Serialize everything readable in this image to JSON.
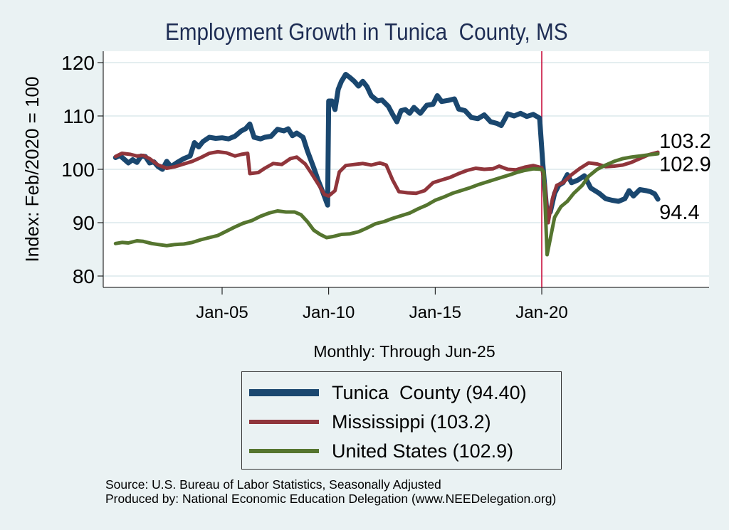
{
  "chart_data": {
    "type": "line",
    "title": "Employment Growth in Tunica  County, MS",
    "xlabel": "Monthly: Through Jun-25",
    "ylabel": "Index: Feb/2020 = 100",
    "xlim": [
      1999.5,
      2028.3
    ],
    "ylim": [
      78.0,
      122.2
    ],
    "x_ticks": [
      {
        "value": 2005,
        "label": "Jan-05"
      },
      {
        "value": 2010,
        "label": "Jan-10"
      },
      {
        "value": 2015,
        "label": "Jan-15"
      },
      {
        "value": 2020,
        "label": "Jan-20"
      }
    ],
    "y_ticks": [
      80,
      90,
      100,
      110,
      120
    ],
    "grid": true,
    "reference_line": {
      "x": 2020.0,
      "color": "#c8103e"
    },
    "legend_position": "bottom",
    "series": [
      {
        "name": "Tunica  County (94.40)",
        "color": "#1a476f",
        "end_label": "94.4",
        "points": [
          [
            2000.0,
            102.2
          ],
          [
            2000.2,
            102.6
          ],
          [
            2000.4,
            101.9
          ],
          [
            2000.6,
            101.2
          ],
          [
            2000.8,
            101.8
          ],
          [
            2001.0,
            101.3
          ],
          [
            2001.2,
            102.5
          ],
          [
            2001.4,
            102.4
          ],
          [
            2001.6,
            101.2
          ],
          [
            2001.8,
            101.4
          ],
          [
            2002.0,
            100.5
          ],
          [
            2002.2,
            100.0
          ],
          [
            2002.4,
            101.5
          ],
          [
            2002.6,
            100.5
          ],
          [
            2002.9,
            101.3
          ],
          [
            2003.2,
            102.0
          ],
          [
            2003.5,
            102.5
          ],
          [
            2003.7,
            105.0
          ],
          [
            2003.9,
            104.2
          ],
          [
            2004.1,
            105.2
          ],
          [
            2004.4,
            106.0
          ],
          [
            2004.7,
            105.8
          ],
          [
            2005.0,
            105.9
          ],
          [
            2005.3,
            105.7
          ],
          [
            2005.6,
            106.2
          ],
          [
            2005.9,
            107.2
          ],
          [
            2006.1,
            107.6
          ],
          [
            2006.3,
            108.5
          ],
          [
            2006.5,
            106.0
          ],
          [
            2006.8,
            105.7
          ],
          [
            2007.0,
            106.0
          ],
          [
            2007.3,
            106.2
          ],
          [
            2007.6,
            107.5
          ],
          [
            2007.9,
            107.2
          ],
          [
            2008.1,
            107.6
          ],
          [
            2008.3,
            106.3
          ],
          [
            2008.5,
            106.8
          ],
          [
            2008.8,
            106.0
          ],
          [
            2009.0,
            103.5
          ],
          [
            2009.3,
            100.3
          ],
          [
            2009.5,
            98.0
          ],
          [
            2009.7,
            96.0
          ],
          [
            2009.95,
            93.3
          ],
          [
            2010.0,
            112.8
          ],
          [
            2010.15,
            112.8
          ],
          [
            2010.3,
            111.2
          ],
          [
            2010.45,
            115.0
          ],
          [
            2010.6,
            116.5
          ],
          [
            2010.8,
            117.8
          ],
          [
            2011.0,
            117.2
          ],
          [
            2011.2,
            116.5
          ],
          [
            2011.4,
            115.6
          ],
          [
            2011.6,
            116.5
          ],
          [
            2011.8,
            115.5
          ],
          [
            2012.0,
            113.8
          ],
          [
            2012.3,
            112.8
          ],
          [
            2012.5,
            113.0
          ],
          [
            2012.8,
            111.8
          ],
          [
            2013.0,
            110.3
          ],
          [
            2013.2,
            108.9
          ],
          [
            2013.4,
            111.0
          ],
          [
            2013.6,
            111.2
          ],
          [
            2013.8,
            110.5
          ],
          [
            2014.0,
            111.6
          ],
          [
            2014.3,
            110.5
          ],
          [
            2014.6,
            112.0
          ],
          [
            2014.9,
            112.2
          ],
          [
            2015.1,
            113.8
          ],
          [
            2015.3,
            112.7
          ],
          [
            2015.6,
            112.9
          ],
          [
            2015.9,
            113.2
          ],
          [
            2016.1,
            111.3
          ],
          [
            2016.4,
            111.0
          ],
          [
            2016.7,
            109.7
          ],
          [
            2017.0,
            109.5
          ],
          [
            2017.3,
            110.2
          ],
          [
            2017.6,
            108.9
          ],
          [
            2017.9,
            108.6
          ],
          [
            2018.1,
            108.2
          ],
          [
            2018.4,
            110.4
          ],
          [
            2018.7,
            110.0
          ],
          [
            2019.0,
            110.5
          ],
          [
            2019.3,
            109.9
          ],
          [
            2019.6,
            110.3
          ],
          [
            2019.9,
            109.6
          ],
          [
            2020.05,
            101.0
          ],
          [
            2020.25,
            91.5
          ],
          [
            2020.4,
            92.0
          ],
          [
            2020.6,
            95.5
          ],
          [
            2020.8,
            97.0
          ],
          [
            2021.0,
            97.5
          ],
          [
            2021.2,
            99.0
          ],
          [
            2021.4,
            97.5
          ],
          [
            2021.7,
            98.0
          ],
          [
            2022.0,
            98.8
          ],
          [
            2022.3,
            96.5
          ],
          [
            2022.7,
            95.5
          ],
          [
            2023.0,
            94.5
          ],
          [
            2023.3,
            94.2
          ],
          [
            2023.6,
            94.0
          ],
          [
            2023.9,
            94.5
          ],
          [
            2024.1,
            96.0
          ],
          [
            2024.3,
            95.0
          ],
          [
            2024.6,
            96.2
          ],
          [
            2024.9,
            96.0
          ],
          [
            2025.1,
            95.8
          ],
          [
            2025.3,
            95.4
          ],
          [
            2025.45,
            94.4
          ]
        ]
      },
      {
        "name": "Mississippi (103.2)",
        "color": "#90353b",
        "end_label": "103.2",
        "points": [
          [
            2000.0,
            102.4
          ],
          [
            2000.3,
            103.0
          ],
          [
            2000.7,
            102.8
          ],
          [
            2001.0,
            102.5
          ],
          [
            2001.3,
            102.6
          ],
          [
            2001.6,
            102.0
          ],
          [
            2002.0,
            100.8
          ],
          [
            2002.4,
            100.2
          ],
          [
            2002.8,
            100.5
          ],
          [
            2003.2,
            101.0
          ],
          [
            2003.6,
            101.5
          ],
          [
            2004.0,
            102.2
          ],
          [
            2004.4,
            103.0
          ],
          [
            2004.8,
            103.3
          ],
          [
            2005.2,
            103.1
          ],
          [
            2005.6,
            102.5
          ],
          [
            2005.9,
            102.8
          ],
          [
            2006.2,
            103.0
          ],
          [
            2006.3,
            99.2
          ],
          [
            2006.7,
            99.4
          ],
          [
            2007.0,
            100.2
          ],
          [
            2007.4,
            101.1
          ],
          [
            2007.8,
            100.9
          ],
          [
            2008.2,
            102.0
          ],
          [
            2008.5,
            102.3
          ],
          [
            2008.9,
            101.0
          ],
          [
            2009.2,
            99.2
          ],
          [
            2009.5,
            97.3
          ],
          [
            2009.8,
            95.3
          ],
          [
            2010.0,
            95.0
          ],
          [
            2010.3,
            96.0
          ],
          [
            2010.5,
            99.5
          ],
          [
            2010.8,
            100.7
          ],
          [
            2011.2,
            100.9
          ],
          [
            2011.6,
            101.1
          ],
          [
            2012.0,
            100.8
          ],
          [
            2012.4,
            101.2
          ],
          [
            2012.7,
            100.8
          ],
          [
            2013.0,
            98.0
          ],
          [
            2013.3,
            95.8
          ],
          [
            2013.7,
            95.6
          ],
          [
            2014.1,
            95.5
          ],
          [
            2014.5,
            96.0
          ],
          [
            2014.9,
            97.5
          ],
          [
            2015.3,
            98.0
          ],
          [
            2015.7,
            98.5
          ],
          [
            2016.1,
            99.2
          ],
          [
            2016.5,
            99.8
          ],
          [
            2016.9,
            100.2
          ],
          [
            2017.3,
            100.0
          ],
          [
            2017.7,
            100.1
          ],
          [
            2018.0,
            100.6
          ],
          [
            2018.4,
            100.0
          ],
          [
            2018.8,
            99.9
          ],
          [
            2019.2,
            100.4
          ],
          [
            2019.6,
            100.7
          ],
          [
            2020.0,
            100.3
          ],
          [
            2020.15,
            97.0
          ],
          [
            2020.3,
            90.0
          ],
          [
            2020.5,
            94.5
          ],
          [
            2020.7,
            97.0
          ],
          [
            2021.0,
            97.5
          ],
          [
            2021.4,
            99.0
          ],
          [
            2021.8,
            100.2
          ],
          [
            2022.2,
            101.2
          ],
          [
            2022.6,
            101.0
          ],
          [
            2023.0,
            100.5
          ],
          [
            2023.4,
            100.6
          ],
          [
            2023.8,
            100.8
          ],
          [
            2024.2,
            101.3
          ],
          [
            2024.6,
            102.0
          ],
          [
            2025.0,
            102.7
          ],
          [
            2025.45,
            103.2
          ]
        ]
      },
      {
        "name": "United States (102.9)",
        "color": "#55752f",
        "end_label": "102.9",
        "points": [
          [
            2000.0,
            86.1
          ],
          [
            2000.3,
            86.3
          ],
          [
            2000.6,
            86.2
          ],
          [
            2001.0,
            86.6
          ],
          [
            2001.3,
            86.5
          ],
          [
            2001.7,
            86.1
          ],
          [
            2002.0,
            85.9
          ],
          [
            2002.4,
            85.7
          ],
          [
            2002.8,
            85.9
          ],
          [
            2003.2,
            86.0
          ],
          [
            2003.6,
            86.3
          ],
          [
            2004.0,
            86.8
          ],
          [
            2004.4,
            87.2
          ],
          [
            2004.8,
            87.6
          ],
          [
            2005.2,
            88.4
          ],
          [
            2005.6,
            89.2
          ],
          [
            2006.0,
            89.9
          ],
          [
            2006.4,
            90.4
          ],
          [
            2006.8,
            91.2
          ],
          [
            2007.2,
            91.8
          ],
          [
            2007.6,
            92.2
          ],
          [
            2008.0,
            92.0
          ],
          [
            2008.4,
            92.0
          ],
          [
            2008.7,
            91.5
          ],
          [
            2009.0,
            90.2
          ],
          [
            2009.3,
            88.6
          ],
          [
            2009.6,
            87.8
          ],
          [
            2009.9,
            87.2
          ],
          [
            2010.2,
            87.4
          ],
          [
            2010.6,
            87.8
          ],
          [
            2011.0,
            87.9
          ],
          [
            2011.4,
            88.3
          ],
          [
            2011.8,
            89.0
          ],
          [
            2012.2,
            89.8
          ],
          [
            2012.6,
            90.2
          ],
          [
            2013.0,
            90.8
          ],
          [
            2013.4,
            91.3
          ],
          [
            2013.8,
            91.8
          ],
          [
            2014.2,
            92.6
          ],
          [
            2014.6,
            93.3
          ],
          [
            2015.0,
            94.2
          ],
          [
            2015.4,
            94.8
          ],
          [
            2015.8,
            95.5
          ],
          [
            2016.2,
            96.0
          ],
          [
            2016.6,
            96.5
          ],
          [
            2017.0,
            97.1
          ],
          [
            2017.4,
            97.6
          ],
          [
            2017.8,
            98.1
          ],
          [
            2018.2,
            98.6
          ],
          [
            2018.6,
            99.1
          ],
          [
            2018.9,
            99.5
          ],
          [
            2019.2,
            99.8
          ],
          [
            2019.6,
            100.1
          ],
          [
            2020.0,
            100.0
          ],
          [
            2020.1,
            99.5
          ],
          [
            2020.25,
            84.0
          ],
          [
            2020.45,
            88.0
          ],
          [
            2020.6,
            91.0
          ],
          [
            2020.9,
            93.0
          ],
          [
            2021.2,
            94.0
          ],
          [
            2021.5,
            95.5
          ],
          [
            2021.9,
            97.0
          ],
          [
            2022.2,
            98.7
          ],
          [
            2022.6,
            100.0
          ],
          [
            2023.0,
            100.8
          ],
          [
            2023.4,
            101.5
          ],
          [
            2023.8,
            102.0
          ],
          [
            2024.2,
            102.3
          ],
          [
            2024.6,
            102.5
          ],
          [
            2025.0,
            102.7
          ],
          [
            2025.45,
            102.9
          ]
        ]
      }
    ]
  },
  "footer": {
    "source": "Source: U.S. Bureau of Labor Statistics, Seasonally Adjusted",
    "produced_by": "Produced by: National Economic Education Delegation (www.NEEDelegation.org)"
  }
}
